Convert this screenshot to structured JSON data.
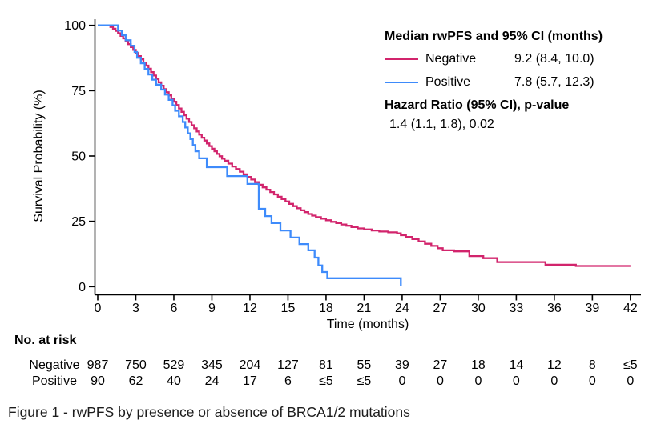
{
  "figure": {
    "caption": "Figure 1 - rwPFS by presence or absence of BRCA1/2 mutations"
  },
  "legend": {
    "title": "Median rwPFS and 95% CI (months)",
    "entries": [
      {
        "label": "Negative",
        "value": "9.2 (8.4, 10.0)"
      },
      {
        "label": "Positive",
        "value": "7.8 (5.7, 12.3)"
      }
    ],
    "hazard_title": "Hazard Ratio (95% CI), p-value",
    "hazard_value": "1.4 (1.1, 1.8), 0.02"
  },
  "chart_data": {
    "type": "line",
    "subtype": "kaplan-meier-step",
    "title": "",
    "xlabel": "Time (months)",
    "ylabel": "Survival Probability (%)",
    "xlim": [
      0,
      42
    ],
    "ylim": [
      0,
      100
    ],
    "xticks": [
      0,
      3,
      6,
      9,
      12,
      15,
      18,
      21,
      24,
      27,
      30,
      33,
      36,
      39,
      42
    ],
    "yticks": [
      0,
      25,
      50,
      75,
      100
    ],
    "grid": false,
    "legend_position": "top-right",
    "axis_color": "#000000",
    "series": [
      {
        "name": "Negative",
        "color": "#d2246c",
        "median_months": 9.2,
        "median_ci": [
          8.4,
          10.0
        ],
        "points": [
          [
            0,
            100
          ],
          [
            1.0,
            99.4
          ],
          [
            1.2,
            98.7
          ],
          [
            1.4,
            97.9
          ],
          [
            1.6,
            97.0
          ],
          [
            1.8,
            96.0
          ],
          [
            2.0,
            95.0
          ],
          [
            2.2,
            93.9
          ],
          [
            2.4,
            92.8
          ],
          [
            2.6,
            91.7
          ],
          [
            2.8,
            90.6
          ],
          [
            3.0,
            89.4
          ],
          [
            3.2,
            88.2
          ],
          [
            3.4,
            87.0
          ],
          [
            3.6,
            85.8
          ],
          [
            3.8,
            84.6
          ],
          [
            4.0,
            83.4
          ],
          [
            4.2,
            82.1
          ],
          [
            4.4,
            80.8
          ],
          [
            4.6,
            79.5
          ],
          [
            4.8,
            78.2
          ],
          [
            5.0,
            76.9
          ],
          [
            5.2,
            75.6
          ],
          [
            5.4,
            74.4
          ],
          [
            5.6,
            73.2
          ],
          [
            5.8,
            72.0
          ],
          [
            6.0,
            70.8
          ],
          [
            6.2,
            69.5
          ],
          [
            6.4,
            68.2
          ],
          [
            6.6,
            66.9
          ],
          [
            6.8,
            65.6
          ],
          [
            7.0,
            64.3
          ],
          [
            7.2,
            63.0
          ],
          [
            7.4,
            61.8
          ],
          [
            7.6,
            60.6
          ],
          [
            7.8,
            59.4
          ],
          [
            8.0,
            58.2
          ],
          [
            8.2,
            57.0
          ],
          [
            8.4,
            55.9
          ],
          [
            8.6,
            54.8
          ],
          [
            8.8,
            53.8
          ],
          [
            9.0,
            52.8
          ],
          [
            9.2,
            51.8
          ],
          [
            9.4,
            50.8
          ],
          [
            9.6,
            49.9
          ],
          [
            9.8,
            49.0
          ],
          [
            10.0,
            48.2
          ],
          [
            10.3,
            47.1
          ],
          [
            10.6,
            46.0
          ],
          [
            10.9,
            45.0
          ],
          [
            11.2,
            44.0
          ],
          [
            11.5,
            43.0
          ],
          [
            11.8,
            42.0
          ],
          [
            12.1,
            41.0
          ],
          [
            12.4,
            40.0
          ],
          [
            12.7,
            39.0
          ],
          [
            13.0,
            38.0
          ],
          [
            13.3,
            37.1
          ],
          [
            13.6,
            36.2
          ],
          [
            13.9,
            35.3
          ],
          [
            14.2,
            34.4
          ],
          [
            14.5,
            33.5
          ],
          [
            14.8,
            32.6
          ],
          [
            15.1,
            31.7
          ],
          [
            15.4,
            30.8
          ],
          [
            15.7,
            30.0
          ],
          [
            16.0,
            29.2
          ],
          [
            16.3,
            28.5
          ],
          [
            16.6,
            27.8
          ],
          [
            16.9,
            27.2
          ],
          [
            17.2,
            26.6
          ],
          [
            17.6,
            26.0
          ],
          [
            18.0,
            25.4
          ],
          [
            18.4,
            24.8
          ],
          [
            18.8,
            24.3
          ],
          [
            19.2,
            23.8
          ],
          [
            19.6,
            23.3
          ],
          [
            20.0,
            22.8
          ],
          [
            20.5,
            22.3
          ],
          [
            21.0,
            21.9
          ],
          [
            21.6,
            21.5
          ],
          [
            22.2,
            21.1
          ],
          [
            22.9,
            20.8
          ],
          [
            23.6,
            20.4
          ],
          [
            23.9,
            19.7
          ],
          [
            24.3,
            19.0
          ],
          [
            24.8,
            18.2
          ],
          [
            25.3,
            17.3
          ],
          [
            25.8,
            16.4
          ],
          [
            26.3,
            15.6
          ],
          [
            26.8,
            14.7
          ],
          [
            27.2,
            13.9
          ],
          [
            28.1,
            13.5
          ],
          [
            29.3,
            11.7
          ],
          [
            30.4,
            10.9
          ],
          [
            31.5,
            9.4
          ],
          [
            35.3,
            8.4
          ],
          [
            37.7,
            7.9
          ],
          [
            42,
            7.9
          ]
        ]
      },
      {
        "name": "Positive",
        "color": "#3e8bfb",
        "median_months": 7.8,
        "median_ci": [
          5.7,
          12.3
        ],
        "points": [
          [
            0,
            100
          ],
          [
            1.6,
            98.0
          ],
          [
            1.9,
            96.2
          ],
          [
            2.2,
            94.3
          ],
          [
            2.6,
            92.2
          ],
          [
            2.9,
            89.8
          ],
          [
            3.1,
            87.6
          ],
          [
            3.4,
            85.5
          ],
          [
            3.7,
            83.3
          ],
          [
            4.0,
            81.2
          ],
          [
            4.3,
            79.2
          ],
          [
            4.6,
            77.3
          ],
          [
            5.0,
            75.4
          ],
          [
            5.3,
            73.5
          ],
          [
            5.6,
            71.5
          ],
          [
            5.9,
            69.4
          ],
          [
            6.1,
            67.3
          ],
          [
            6.4,
            65.2
          ],
          [
            6.7,
            63.0
          ],
          [
            6.9,
            60.9
          ],
          [
            7.1,
            58.7
          ],
          [
            7.3,
            56.5
          ],
          [
            7.5,
            54.2
          ],
          [
            7.7,
            51.8
          ],
          [
            8.0,
            49.1
          ],
          [
            8.6,
            45.7
          ],
          [
            10.2,
            42.3
          ],
          [
            11.8,
            39.3
          ],
          [
            12.7,
            29.8
          ],
          [
            13.2,
            27.0
          ],
          [
            13.7,
            24.3
          ],
          [
            14.4,
            21.5
          ],
          [
            15.2,
            18.8
          ],
          [
            15.9,
            16.3
          ],
          [
            16.6,
            13.9
          ],
          [
            17.1,
            11.1
          ],
          [
            17.4,
            8.1
          ],
          [
            17.7,
            5.6
          ],
          [
            18.1,
            3.2
          ],
          [
            23.8,
            3.2
          ],
          [
            23.9,
            0.3
          ]
        ]
      }
    ],
    "hazard_ratio": "1.4 (1.1, 1.8)",
    "p_value": "0.02"
  },
  "risk_table": {
    "title": "No. at risk",
    "times": [
      0,
      3,
      6,
      9,
      12,
      15,
      18,
      21,
      24,
      27,
      30,
      33,
      36,
      39,
      42
    ],
    "rows": [
      {
        "label": "Negative",
        "counts": [
          "987",
          "750",
          "529",
          "345",
          "204",
          "127",
          "81",
          "55",
          "39",
          "27",
          "18",
          "14",
          "12",
          "8",
          "≤5"
        ]
      },
      {
        "label": "Positive",
        "counts": [
          "90",
          "62",
          "40",
          "24",
          "17",
          "6",
          "≤5",
          "≤5",
          "0",
          "0",
          "0",
          "0",
          "0",
          "0",
          "0"
        ]
      }
    ]
  }
}
